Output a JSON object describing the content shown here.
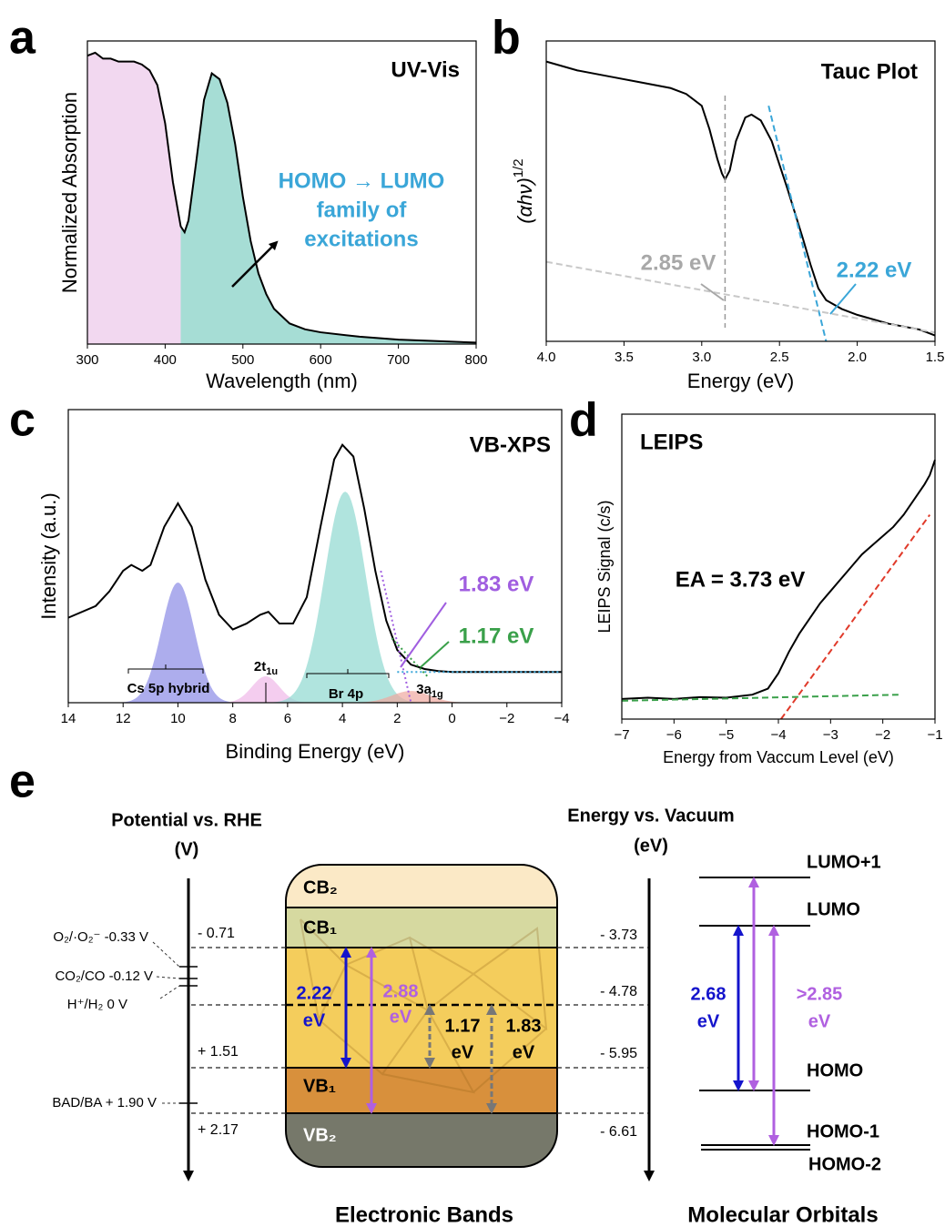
{
  "chart_data": [
    {
      "type": "line",
      "panel": "a",
      "title": "UV-Vis",
      "xlabel": "Wavelength (nm)",
      "ylabel": "Normalized Absorption",
      "xlim": [
        300,
        800
      ],
      "ylim": [
        0,
        1.03
      ],
      "xticks": [
        300,
        400,
        500,
        600,
        700,
        800
      ],
      "series": [
        {
          "color": "#000000",
          "x": [
            300,
            310,
            320,
            330,
            340,
            350,
            360,
            370,
            380,
            390,
            400,
            410,
            420,
            425,
            430,
            440,
            450,
            460,
            470,
            480,
            490,
            500,
            510,
            520,
            530,
            540,
            560,
            580,
            600,
            650,
            700,
            750,
            800
          ],
          "values": [
            0.98,
            0.99,
            0.97,
            0.97,
            0.96,
            0.96,
            0.96,
            0.95,
            0.93,
            0.88,
            0.75,
            0.55,
            0.4,
            0.38,
            0.42,
            0.62,
            0.83,
            0.92,
            0.9,
            0.82,
            0.68,
            0.5,
            0.35,
            0.24,
            0.17,
            0.12,
            0.07,
            0.05,
            0.04,
            0.025,
            0.015,
            0.01,
            0.005
          ]
        }
      ],
      "fill": {
        "split": 420,
        "colors": [
          "#f2d8f0",
          "#a6ddd5"
        ]
      },
      "annotation": [
        "HOMO → LUMO",
        "family of",
        "excitations"
      ],
      "annotation_color": "#3aa6d8"
    },
    {
      "type": "line",
      "panel": "b",
      "title": "Tauc Plot",
      "xlabel": "Energy (eV)",
      "ylabel": "(αhν)",
      "ylabel_sup": "1/2",
      "xlim": [
        4.0,
        1.5
      ],
      "ylim": [
        -0.02,
        1.0
      ],
      "xticks": [
        {
          "value": 4,
          "label": "4.0"
        },
        3.5,
        {
          "value": 3,
          "label": "3.0"
        },
        2.5,
        {
          "value": 2,
          "label": "2.0"
        },
        1.5
      ],
      "series": [
        {
          "color": "#000000",
          "x": [
            4.0,
            3.8,
            3.6,
            3.4,
            3.2,
            3.1,
            3.0,
            2.95,
            2.9,
            2.87,
            2.85,
            2.82,
            2.78,
            2.72,
            2.68,
            2.62,
            2.55,
            2.45,
            2.35,
            2.3,
            2.25,
            2.2,
            2.1,
            2.0,
            1.8,
            1.6,
            1.5
          ],
          "values": [
            0.93,
            0.9,
            0.88,
            0.86,
            0.84,
            0.82,
            0.78,
            0.7,
            0.6,
            0.55,
            0.53,
            0.56,
            0.66,
            0.74,
            0.75,
            0.73,
            0.66,
            0.5,
            0.33,
            0.24,
            0.16,
            0.12,
            0.09,
            0.07,
            0.04,
            0.02,
            0.0
          ]
        }
      ],
      "fits": [
        {
          "color": "#3aa6d8",
          "x": [
            2.57,
            2.2
          ],
          "values": [
            0.78,
            -0.02
          ]
        },
        {
          "color": "#c8c8c8",
          "x": [
            4.0,
            1.5
          ],
          "values": [
            0.25,
            0.01
          ]
        }
      ],
      "onsets": [
        {
          "value": 2.85,
          "label": "2.85 eV",
          "color": "#a8a8a8",
          "vline": true
        },
        {
          "value": 2.22,
          "label": "2.22 eV",
          "color": "#3aa6d8"
        }
      ]
    },
    {
      "type": "line",
      "panel": "c",
      "title": "VB-XPS",
      "xlabel": "Binding Energy (eV)",
      "ylabel": "Intensity (a.u.)",
      "xlim": [
        14,
        -4
      ],
      "ylim": [
        0,
        1.0
      ],
      "xticks": [
        14,
        12,
        10,
        8,
        6,
        4,
        2,
        0,
        {
          "value": -2,
          "label": "−2"
        },
        {
          "value": -4,
          "label": "−4"
        }
      ],
      "series": [
        {
          "color": "#000000",
          "x": [
            14,
            13,
            12.5,
            12,
            11.7,
            11.3,
            11,
            10.5,
            10,
            9.5,
            9,
            8.5,
            8,
            7.5,
            7,
            6.7,
            6.3,
            5.8,
            5.3,
            4.8,
            4.3,
            4,
            3.6,
            3.2,
            2.8,
            2.4,
            2,
            1.5,
            1,
            0.5,
            0,
            -2,
            -4
          ],
          "values": [
            0.29,
            0.33,
            0.38,
            0.45,
            0.47,
            0.45,
            0.47,
            0.6,
            0.68,
            0.6,
            0.42,
            0.3,
            0.25,
            0.27,
            0.3,
            0.31,
            0.27,
            0.27,
            0.36,
            0.6,
            0.83,
            0.88,
            0.84,
            0.66,
            0.45,
            0.28,
            0.18,
            0.13,
            0.115,
            0.108,
            0.105,
            0.105,
            0.105
          ]
        }
      ],
      "components": [
        {
          "label": "Cs 5p hybrid",
          "color": "#8a8ae6",
          "center": 10,
          "height": 0.41,
          "width": 0.6
        },
        {
          "label": "2t",
          "label_sub": "1u",
          "color": "#f0b8e8",
          "center": 6.8,
          "height": 0.09,
          "width": 0.5
        },
        {
          "label": "Br 4p",
          "color": "#8fd8d0",
          "center": 3.9,
          "height": 0.72,
          "width": 0.75
        },
        {
          "label": "3a",
          "label_sub": "1g",
          "color": "#f0a8a0",
          "center": 1.5,
          "height": 0.04,
          "width": 0.7
        }
      ],
      "fits": [
        {
          "color": "#a05ee0",
          "x": [
            2.6,
            1.5
          ],
          "values": [
            0.45,
            0.0
          ]
        },
        {
          "color": "#3aa04a",
          "x": [
            2.2,
            0.9
          ],
          "values": [
            0.22,
            0.09
          ]
        },
        {
          "color": "#3aa6d8",
          "x": [
            2,
            -4
          ],
          "values": [
            0.105,
            0.105
          ]
        }
      ],
      "onsets": [
        {
          "value": 1.83,
          "label": "1.83 eV",
          "color": "#a05ee0"
        },
        {
          "value": 1.17,
          "label": "1.17 eV",
          "color": "#3aa04a"
        }
      ]
    },
    {
      "type": "line",
      "panel": "d",
      "title": "LEIPS",
      "xlabel": "Energy from Vaccum Level (eV)",
      "ylabel": "LEIPS Signal (c/s)",
      "xlim": [
        -7,
        -1
      ],
      "ylim": [
        0,
        1.0
      ],
      "xticks": [
        {
          "value": -7,
          "label": "−7"
        },
        {
          "value": -6,
          "label": "−6"
        },
        {
          "value": -5,
          "label": "−5"
        },
        {
          "value": -4,
          "label": "−4"
        },
        {
          "value": -3,
          "label": "−3"
        },
        {
          "value": -2,
          "label": "−2"
        },
        {
          "value": -1,
          "label": "−1"
        }
      ],
      "series": [
        {
          "color": "#000000",
          "x": [
            -7,
            -6.5,
            -6,
            -5.5,
            -5,
            -4.5,
            -4.2,
            -4,
            -3.8,
            -3.6,
            -3.4,
            -3.2,
            -3,
            -2.8,
            -2.6,
            -2.4,
            -2.2,
            -2,
            -1.8,
            -1.6,
            -1.4,
            -1.2,
            -1.1,
            -1
          ],
          "values": [
            0.066,
            0.07,
            0.066,
            0.072,
            0.07,
            0.08,
            0.1,
            0.15,
            0.22,
            0.28,
            0.33,
            0.38,
            0.42,
            0.46,
            0.5,
            0.54,
            0.57,
            0.6,
            0.63,
            0.67,
            0.72,
            0.77,
            0.8,
            0.85
          ]
        }
      ],
      "fits": [
        {
          "color": "#e03a2a",
          "x": [
            -3.95,
            -1.1
          ],
          "values": [
            0.0,
            0.67
          ]
        },
        {
          "color": "#3aa04a",
          "x": [
            -7,
            -1.7
          ],
          "values": [
            0.06,
            0.08
          ]
        }
      ],
      "annotation": [
        "EA = 3.73 eV"
      ],
      "annotation_color": "#000000"
    }
  ],
  "diagram": {
    "panel": "e",
    "left_header": [
      "Potential vs. RHE",
      "(V)"
    ],
    "right_header": [
      "Energy vs. Vacuum",
      "(eV)"
    ],
    "references": [
      "O₂/·O₂⁻ -0.33 V",
      "CO₂/CO -0.12 V",
      "H⁺/H₂ 0 V",
      "BAD/BA + 1.90 V"
    ],
    "rhe_levels": [
      "- 0.71",
      "+ 1.51",
      "+ 2.17"
    ],
    "vacuum_levels": [
      "- 3.73",
      "- 4.78",
      "- 5.95",
      "- 6.61"
    ],
    "bands": [
      "CB₂",
      "CB₁",
      "VB₁",
      "VB₂"
    ],
    "band_gaps": [
      [
        "2.22",
        "eV"
      ],
      [
        "2.88",
        "eV"
      ],
      [
        "1.17",
        "eV"
      ],
      [
        "1.83",
        "eV"
      ]
    ],
    "orbitals": [
      "LUMO+1",
      "LUMO",
      "HOMO",
      "HOMO-1",
      "HOMO-2"
    ],
    "orbital_gaps": [
      [
        "2.68",
        "eV"
      ],
      [
        ">2.85",
        "eV"
      ]
    ],
    "footers": [
      "Electronic Bands",
      "Molecular Orbitals"
    ]
  }
}
